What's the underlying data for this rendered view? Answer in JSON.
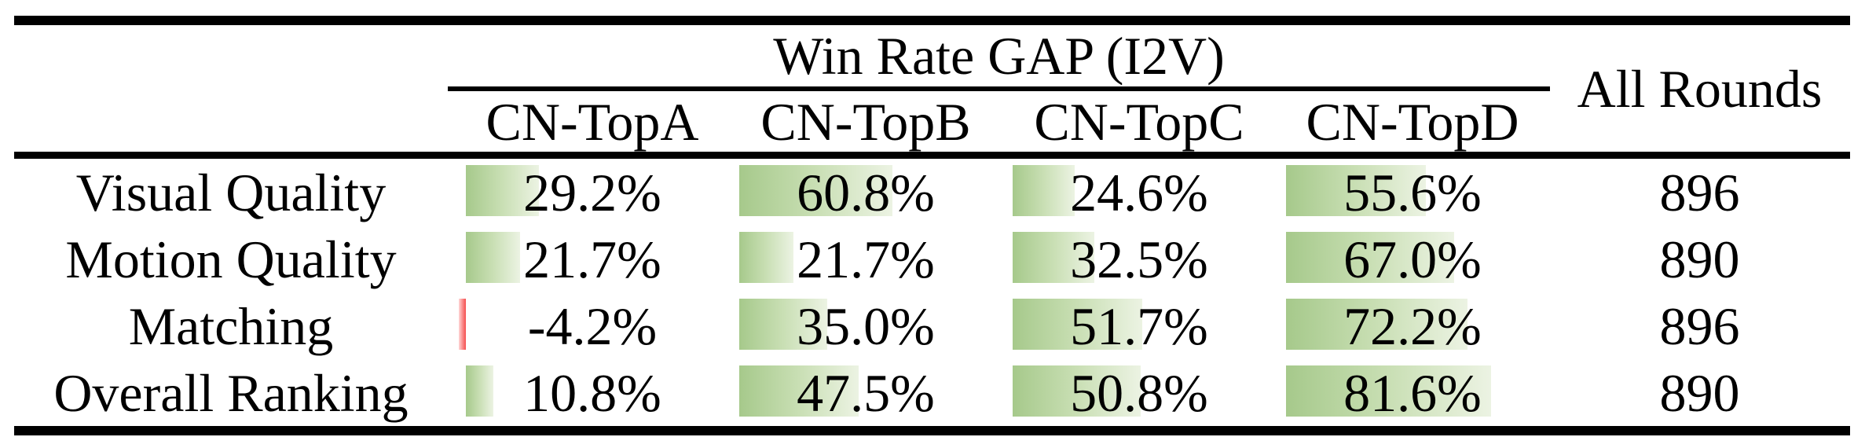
{
  "table": {
    "title": "Win Rate GAP (I2V)",
    "all_rounds_header": "All Rounds",
    "columns": [
      "CN-TopA",
      "CN-TopB",
      "CN-TopC",
      "CN-TopD"
    ],
    "rows": [
      {
        "label": "Visual Quality",
        "values": [
          29.2,
          60.8,
          24.6,
          55.6
        ],
        "display": [
          "29.2%",
          "60.8%",
          "24.6%",
          "55.6%"
        ],
        "all_rounds": "896"
      },
      {
        "label": "Motion Quality",
        "values": [
          21.7,
          21.7,
          32.5,
          67.0
        ],
        "display": [
          "21.7%",
          "21.7%",
          "32.5%",
          "67.0%"
        ],
        "all_rounds": "890"
      },
      {
        "label": "Matching",
        "values": [
          -4.2,
          35.0,
          51.7,
          72.2
        ],
        "display": [
          "-4.2%",
          "35.0%",
          "51.7%",
          "72.2%"
        ],
        "all_rounds": "896"
      },
      {
        "label": "Overall Ranking",
        "values": [
          10.8,
          47.5,
          50.8,
          81.6
        ],
        "display": [
          "10.8%",
          "47.5%",
          "50.8%",
          "81.6%"
        ],
        "all_rounds": "890"
      }
    ],
    "colors": {
      "bar_positive": "#a6c98b",
      "bar_negative": "#f54f4f",
      "rule": "#000000",
      "text": "#000000",
      "background": "#ffffff"
    }
  },
  "chart_data": {
    "type": "table",
    "title": "Win Rate GAP (I2V)",
    "categories": [
      "Visual Quality",
      "Motion Quality",
      "Matching",
      "Overall Ranking"
    ],
    "series": [
      {
        "name": "CN-TopA",
        "values": [
          29.2,
          21.7,
          -4.2,
          10.8
        ]
      },
      {
        "name": "CN-TopB",
        "values": [
          60.8,
          21.7,
          35.0,
          47.5
        ]
      },
      {
        "name": "CN-TopC",
        "values": [
          24.6,
          32.5,
          51.7,
          50.8
        ]
      },
      {
        "name": "CN-TopD",
        "values": [
          55.6,
          67.0,
          72.2,
          81.6
        ]
      }
    ],
    "extra_column": {
      "name": "All Rounds",
      "values": [
        896,
        890,
        896,
        890
      ]
    },
    "value_unit": "%",
    "bar_axis_range": [
      0,
      100
    ]
  }
}
